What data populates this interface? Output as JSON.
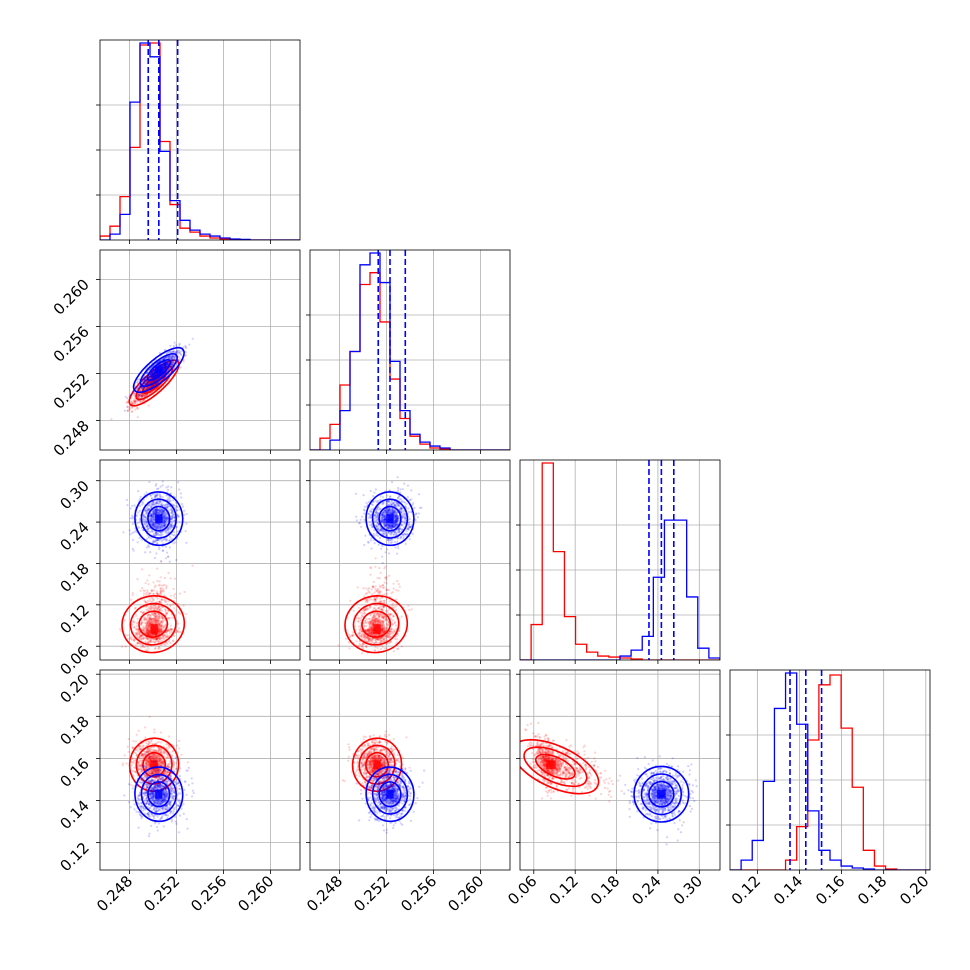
{
  "chart_data": {
    "type": "corner",
    "n_params": 4,
    "series": [
      {
        "name": "",
        "color": "#ff0000",
        "mean": [
          0.2501,
          0.2512,
          0.085,
          0.157
        ],
        "std": [
          0.0009,
          0.0009,
          0.02,
          0.006
        ],
        "corr": [
          [
            1,
            0.9,
            0.15,
            -0.1
          ],
          [
            0.9,
            1,
            0.15,
            -0.1
          ],
          [
            0.15,
            0.15,
            1,
            -0.5
          ],
          [
            -0.1,
            -0.1,
            -0.5,
            1
          ]
        ],
        "hist": [
          [
            0.02,
            0.07,
            0.22,
            0.47,
            0.99,
            1.0,
            0.5,
            0.18,
            0.06,
            0.04,
            0.02,
            0.01,
            0.005,
            0.0,
            0.0,
            0.0,
            0.0,
            0.0,
            0.0,
            0.0
          ],
          [
            0.0,
            0.06,
            0.13,
            0.33,
            0.5,
            0.84,
            0.9,
            0.65,
            0.36,
            0.16,
            0.07,
            0.03,
            0.01,
            0.005,
            0.0,
            0.0,
            0.0,
            0.0,
            0.0,
            0.0
          ],
          [
            0.0,
            0.18,
            1.0,
            0.55,
            0.22,
            0.08,
            0.04,
            0.02,
            0.015,
            0.01,
            0.005,
            0.0,
            0.0,
            0.0,
            0.0,
            0.0,
            0.0,
            0.0
          ],
          [
            0.0,
            0.0,
            0.0,
            0.0,
            0.0,
            0.05,
            0.22,
            0.66,
            0.94,
            0.99,
            0.72,
            0.42,
            0.1,
            0.02,
            0.005,
            0.0,
            0.0,
            0.0
          ]
        ]
      },
      {
        "name": "",
        "color": "#0000ff",
        "mean": [
          0.2505,
          0.2523,
          0.245,
          0.143
        ],
        "std": [
          0.0009,
          0.0009,
          0.018,
          0.006
        ],
        "corr": [
          [
            1,
            0.85,
            0.05,
            0.05
          ],
          [
            0.85,
            1,
            0.05,
            0.05
          ],
          [
            0.05,
            0.05,
            1,
            0.0
          ],
          [
            0.05,
            0.05,
            0.0,
            1
          ]
        ],
        "hist": [
          [
            0.0,
            0.03,
            0.13,
            0.7,
            1.0,
            0.93,
            0.45,
            0.2,
            0.1,
            0.05,
            0.03,
            0.02,
            0.01,
            0.005,
            0.003,
            0.0,
            0.0,
            0.0,
            0.0,
            0.0
          ],
          [
            0.0,
            0.0,
            0.05,
            0.2,
            0.5,
            0.94,
            1.0,
            0.85,
            0.45,
            0.2,
            0.08,
            0.04,
            0.02,
            0.01,
            0.0,
            0.0,
            0.0,
            0.0,
            0.0,
            0.0
          ],
          [
            0.0,
            0.0,
            0.0,
            0.0,
            0.0,
            0.0,
            0.0,
            0.0,
            0.0,
            0.02,
            0.05,
            0.12,
            0.42,
            0.71,
            0.71,
            0.32,
            0.06,
            0.01
          ],
          [
            0.0,
            0.05,
            0.15,
            0.45,
            0.82,
            1.0,
            0.74,
            0.3,
            0.1,
            0.05,
            0.02,
            0.01,
            0.005,
            0.0,
            0.0,
            0.0,
            0.0,
            0.0
          ]
        ]
      }
    ],
    "ranges": [
      [
        0.2455,
        0.2625
      ],
      [
        0.2455,
        0.2625
      ],
      [
        0.04,
        0.33
      ],
      [
        0.107,
        0.202
      ]
    ],
    "x_ticks": [
      [
        "0.248",
        "0.252",
        "0.256",
        "0.260"
      ],
      [
        "0.248",
        "0.252",
        "0.256",
        "0.260"
      ],
      [
        "0.06",
        "0.12",
        "0.18",
        "0.24",
        "0.30"
      ],
      [
        "0.12",
        "0.14",
        "0.16",
        "0.18",
        "0.20"
      ]
    ],
    "y_ticks": [
      [],
      [
        "0.248",
        "0.252",
        "0.256",
        "0.260"
      ],
      [
        "0.06",
        "0.12",
        "0.18",
        "0.24",
        "0.30"
      ],
      [
        "0.12",
        "0.14",
        "0.16",
        "0.18",
        "0.20"
      ]
    ],
    "quantile_lines_blue": [
      [
        0.2496,
        0.2505,
        0.2521
      ],
      [
        0.2513,
        0.2523,
        0.2536
      ],
      [
        0.227,
        0.245,
        0.263
      ],
      [
        0.1355,
        0.143,
        0.1505
      ]
    ],
    "grid": true,
    "title": "",
    "xlabel": "",
    "ylabel": ""
  }
}
